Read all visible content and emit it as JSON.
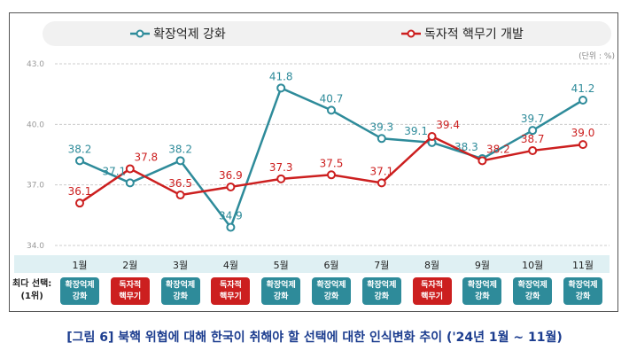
{
  "chart_data": {
    "type": "line",
    "categories": [
      "1월",
      "2월",
      "3월",
      "4월",
      "5월",
      "6월",
      "7월",
      "8월",
      "9월",
      "10월",
      "11월"
    ],
    "series": [
      {
        "name": "확장억제 강화",
        "color": "#2e8b9a",
        "values": [
          38.2,
          37.1,
          38.2,
          34.9,
          41.8,
          40.7,
          39.3,
          39.1,
          38.3,
          39.7,
          41.2
        ]
      },
      {
        "name": "독자적 핵무기 개발",
        "color": "#cc1f1f",
        "values": [
          36.1,
          37.8,
          36.5,
          36.9,
          37.3,
          37.5,
          37.1,
          39.4,
          38.2,
          38.7,
          39.0
        ]
      }
    ],
    "yticks": [
      "34.0",
      "37.0",
      "40.0",
      "43.0"
    ],
    "ylim": [
      34,
      43
    ],
    "unit": "(단위 : %)",
    "grid": true,
    "legend": "top"
  },
  "top_choice": {
    "label": "최다 선택:\n(1위)",
    "items": [
      {
        "text": "확장억제\n강화",
        "color": "#2e8b9a"
      },
      {
        "text": "독자적\n핵무기",
        "color": "#cc1f1f"
      },
      {
        "text": "확장억제\n강화",
        "color": "#2e8b9a"
      },
      {
        "text": "독자적\n핵무기",
        "color": "#cc1f1f"
      },
      {
        "text": "확장억제\n강화",
        "color": "#2e8b9a"
      },
      {
        "text": "확장억제\n강화",
        "color": "#2e8b9a"
      },
      {
        "text": "확장억제\n강화",
        "color": "#2e8b9a"
      },
      {
        "text": "독자적\n핵무기",
        "color": "#cc1f1f"
      },
      {
        "text": "확장억제\n강화",
        "color": "#2e8b9a"
      },
      {
        "text": "확장억제\n강화",
        "color": "#2e8b9a"
      },
      {
        "text": "확장억제\n강화",
        "color": "#2e8b9a"
      }
    ]
  },
  "caption": "[그림 6] 북핵 위협에 대해 한국이 취해야 할 선택에 대한 인식변화 추이 ('24년 1월 ~ 11월)"
}
